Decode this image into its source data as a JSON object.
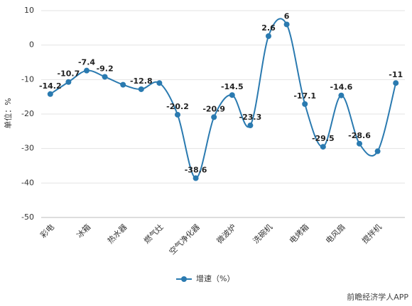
{
  "chart_data": {
    "type": "line",
    "y_label": "单位：%",
    "categories": [
      "彩电",
      null,
      "冰箱",
      null,
      "热水器",
      null,
      "燃气灶",
      null,
      "空气净化器",
      null,
      "微波炉",
      null,
      "洗碗机",
      null,
      "电烤箱",
      null,
      "电风扇",
      null,
      "搅拌机",
      null
    ],
    "series": [
      {
        "name": "增速（%）",
        "color": "#2a7ab0",
        "values": [
          -14.2,
          -10.7,
          -7.4,
          -9.2,
          -11.5,
          -12.8,
          -11,
          -20.2,
          -38.6,
          -20.9,
          -14.5,
          -23.3,
          2.6,
          6,
          -17.1,
          -29.5,
          -14.6,
          -28.6,
          -30.8,
          -11
        ],
        "value_labels": [
          "-14.2",
          "-10.7",
          "-7.4",
          "-9.2",
          null,
          "-12.8",
          null,
          "-20.2",
          "-38.6",
          "-20.9",
          "-14.5",
          "-23.3",
          "2.6",
          "6",
          "-17.1",
          "-29.5",
          "-14.6",
          "-28.6",
          null,
          "-11"
        ]
      }
    ],
    "ylim": [
      -50,
      10
    ],
    "yticks": [
      -50,
      -40,
      -30,
      -20,
      -10,
      0,
      10
    ],
    "grid": true,
    "smooth": true,
    "legend": "bottom",
    "source": "前瞻经济学人APP"
  }
}
